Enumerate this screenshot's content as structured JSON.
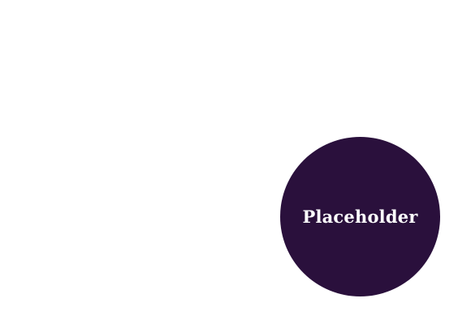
{
  "placeholder": {
    "label": "Placeholder",
    "fill_color": "#2a103c",
    "text_color": "#ffffff"
  },
  "background_color": "#ffffff"
}
